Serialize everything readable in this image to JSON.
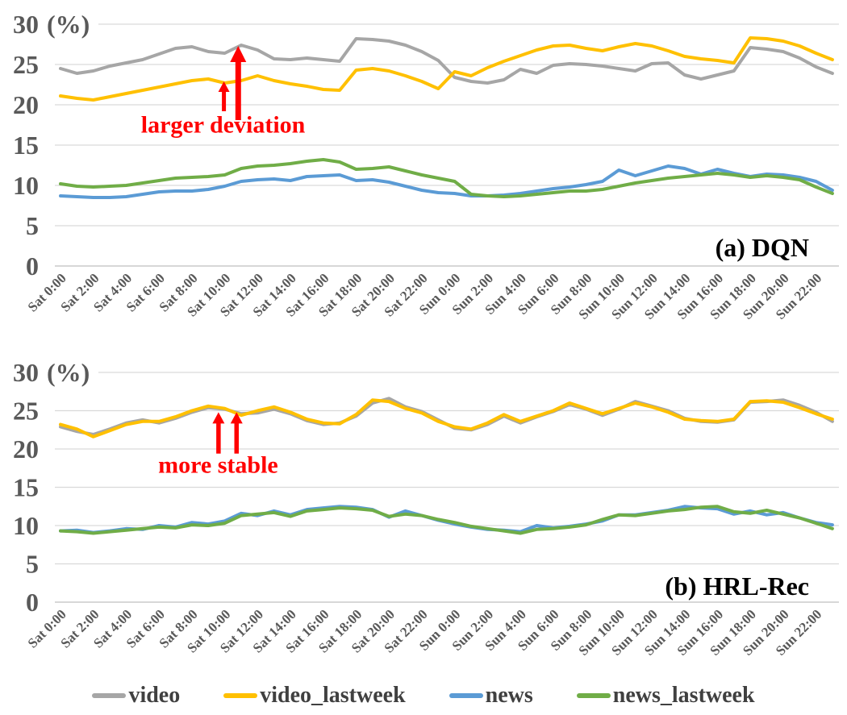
{
  "figure": {
    "unit_label": "(%)",
    "legend": {
      "items": [
        {
          "label": "video",
          "color": "#A6A6A6"
        },
        {
          "label": "video_lastweek",
          "color": "#FFC000"
        },
        {
          "label": "news",
          "color": "#5B9BD5"
        },
        {
          "label": "news_lastweek",
          "color": "#70AD47"
        }
      ]
    }
  },
  "colors": {
    "grid": "#D9D9D9",
    "axis_zero_line": "#BFBFBF",
    "tick_text": "#595959",
    "legend_text": "#404040",
    "title_text": "#000000",
    "annotation": "#FF0000"
  },
  "chart_data": [
    {
      "type": "line",
      "title": "(a) DQN",
      "ylabel": "(%)",
      "ylim": [
        0,
        30
      ],
      "yticks": [
        0,
        5,
        10,
        15,
        20,
        25,
        30
      ],
      "grid": "horizontal",
      "x_points_per_tick": 2,
      "x_tick_labels": [
        "Sat 0:00",
        "Sat 2:00",
        "Sat 4:00",
        "Sat 6:00",
        "Sat 8:00",
        "Sat 10:00",
        "Sat 12:00",
        "Sat 14:00",
        "Sat 16:00",
        "Sat 18:00",
        "Sat 20:00",
        "Sat 22:00",
        "Sun 0:00",
        "Sun 2:00",
        "Sun 4:00",
        "Sun 6:00",
        "Sun 8:00",
        "Sun 10:00",
        "Sun 12:00",
        "Sun 14:00",
        "Sun 16:00",
        "Sun 18:00",
        "Sun 20:00",
        "Sun 22:00"
      ],
      "series": [
        {
          "name": "video",
          "color": "#A6A6A6",
          "values": [
            24.5,
            23.9,
            24.2,
            24.8,
            25.2,
            25.6,
            26.3,
            27.0,
            27.2,
            26.6,
            26.4,
            27.4,
            26.8,
            25.7,
            25.6,
            25.8,
            25.6,
            25.4,
            28.2,
            28.1,
            27.9,
            27.4,
            26.6,
            25.5,
            23.4,
            22.9,
            22.7,
            23.1,
            24.4,
            23.9,
            24.9,
            25.1,
            25.0,
            24.8,
            24.5,
            24.2,
            25.1,
            25.2,
            23.7,
            23.2,
            23.7,
            24.2,
            27.1,
            26.9,
            26.6,
            25.8,
            24.7,
            23.9
          ]
        },
        {
          "name": "video_lastweek",
          "color": "#FFC000",
          "values": [
            21.1,
            20.8,
            20.6,
            21.0,
            21.4,
            21.8,
            22.2,
            22.6,
            23.0,
            23.2,
            22.7,
            23.0,
            23.6,
            23.0,
            22.6,
            22.3,
            21.9,
            21.8,
            24.3,
            24.5,
            24.2,
            23.6,
            22.9,
            22.0,
            24.1,
            23.6,
            24.6,
            25.4,
            26.1,
            26.8,
            27.3,
            27.4,
            27.0,
            26.7,
            27.2,
            27.6,
            27.3,
            26.7,
            26.0,
            25.7,
            25.5,
            25.2,
            28.3,
            28.2,
            27.9,
            27.3,
            26.4,
            25.6
          ]
        },
        {
          "name": "news",
          "color": "#5B9BD5",
          "values": [
            8.7,
            8.6,
            8.5,
            8.5,
            8.6,
            8.9,
            9.2,
            9.3,
            9.3,
            9.5,
            9.9,
            10.5,
            10.7,
            10.8,
            10.6,
            11.1,
            11.2,
            11.3,
            10.6,
            10.7,
            10.4,
            9.9,
            9.4,
            9.1,
            9.0,
            8.7,
            8.7,
            8.8,
            9.0,
            9.3,
            9.6,
            9.8,
            10.1,
            10.5,
            11.9,
            11.2,
            11.8,
            12.4,
            12.1,
            11.4,
            12.0,
            11.5,
            11.1,
            11.4,
            11.3,
            11.0,
            10.5,
            9.4
          ]
        },
        {
          "name": "news_lastweek",
          "color": "#70AD47",
          "values": [
            10.2,
            9.9,
            9.8,
            9.9,
            10.0,
            10.3,
            10.6,
            10.9,
            11.0,
            11.1,
            11.3,
            12.1,
            12.4,
            12.5,
            12.7,
            13.0,
            13.2,
            12.9,
            12.0,
            12.1,
            12.3,
            11.8,
            11.3,
            10.9,
            10.5,
            8.9,
            8.7,
            8.6,
            8.7,
            8.9,
            9.1,
            9.3,
            9.3,
            9.5,
            9.9,
            10.3,
            10.6,
            10.9,
            11.1,
            11.3,
            11.5,
            11.3,
            11.0,
            11.2,
            11.0,
            10.7,
            9.8,
            9.0
          ]
        }
      ],
      "annotation": {
        "text": "larger deviation",
        "color": "#FF0000",
        "text_center": {
          "hour": 9.9,
          "value": 17.5
        },
        "arrows": [
          {
            "hour": 9.95,
            "from_value": 19.2,
            "to_value": 22.9,
            "size": "small"
          },
          {
            "hour": 10.82,
            "from_value": 18.1,
            "to_value": 27.3,
            "size": "large"
          }
        ]
      }
    },
    {
      "type": "line",
      "title": "(b) HRL-Rec",
      "ylabel": "(%)",
      "ylim": [
        0,
        30
      ],
      "yticks": [
        0,
        5,
        10,
        15,
        20,
        25,
        30
      ],
      "grid": "horizontal",
      "x_points_per_tick": 2,
      "x_tick_labels": [
        "Sat 0:00",
        "Sat 2:00",
        "Sat 4:00",
        "Sat 6:00",
        "Sat 8:00",
        "Sat 10:00",
        "Sat 12:00",
        "Sat 14:00",
        "Sat 16:00",
        "Sat 18:00",
        "Sat 20:00",
        "Sat 22:00",
        "Sun 0:00",
        "Sun 2:00",
        "Sun 4:00",
        "Sun 6:00",
        "Sun 8:00",
        "Sun 10:00",
        "Sun 12:00",
        "Sun 14:00",
        "Sun 16:00",
        "Sun 18:00",
        "Sun 20:00",
        "Sun 22:00"
      ],
      "series": [
        {
          "name": "video",
          "color": "#A6A6A6",
          "values": [
            22.9,
            22.3,
            21.9,
            22.6,
            23.4,
            23.8,
            23.4,
            24.0,
            24.8,
            25.4,
            25.2,
            24.6,
            24.7,
            25.2,
            24.6,
            23.7,
            23.2,
            23.4,
            24.3,
            26.0,
            26.6,
            25.5,
            24.9,
            23.8,
            22.7,
            22.5,
            23.2,
            24.3,
            23.4,
            24.2,
            24.9,
            25.8,
            25.2,
            24.4,
            25.2,
            26.2,
            25.6,
            25.0,
            24.0,
            23.6,
            23.5,
            23.8,
            26.1,
            26.2,
            26.4,
            25.7,
            24.8,
            23.6
          ]
        },
        {
          "name": "video_lastweek",
          "color": "#FFC000",
          "values": [
            23.2,
            22.6,
            21.6,
            22.4,
            23.2,
            23.6,
            23.6,
            24.2,
            25.0,
            25.6,
            25.3,
            24.4,
            25.0,
            25.5,
            24.8,
            23.9,
            23.4,
            23.3,
            24.5,
            26.4,
            26.2,
            25.3,
            24.7,
            23.6,
            22.9,
            22.6,
            23.4,
            24.5,
            23.6,
            24.3,
            25.0,
            26.0,
            25.3,
            24.6,
            25.3,
            26.0,
            25.5,
            24.8,
            23.9,
            23.7,
            23.6,
            23.9,
            26.2,
            26.3,
            26.1,
            25.4,
            24.6,
            23.9
          ]
        },
        {
          "name": "news",
          "color": "#5B9BD5",
          "values": [
            9.3,
            9.4,
            9.1,
            9.3,
            9.6,
            9.5,
            10.0,
            9.8,
            10.4,
            10.2,
            10.6,
            11.6,
            11.3,
            11.9,
            11.4,
            12.1,
            12.3,
            12.5,
            12.4,
            12.1,
            11.1,
            11.9,
            11.3,
            10.7,
            10.2,
            9.8,
            9.5,
            9.4,
            9.2,
            10.0,
            9.7,
            9.9,
            10.2,
            10.6,
            11.4,
            11.4,
            11.7,
            12.0,
            12.5,
            12.3,
            12.2,
            11.5,
            11.9,
            11.4,
            11.7,
            11.0,
            10.4,
            10.1
          ]
        },
        {
          "name": "news_lastweek",
          "color": "#70AD47",
          "values": [
            9.3,
            9.2,
            9.0,
            9.2,
            9.4,
            9.6,
            9.8,
            9.7,
            10.1,
            10.0,
            10.3,
            11.3,
            11.5,
            11.7,
            11.2,
            11.9,
            12.1,
            12.3,
            12.2,
            12.0,
            11.2,
            11.5,
            11.3,
            10.8,
            10.4,
            9.9,
            9.6,
            9.3,
            9.0,
            9.5,
            9.6,
            9.8,
            10.1,
            10.8,
            11.4,
            11.3,
            11.6,
            11.9,
            12.1,
            12.4,
            12.5,
            11.8,
            11.6,
            12.0,
            11.5,
            11.0,
            10.3,
            9.6
          ]
        }
      ],
      "annotation": {
        "text": "more stable",
        "color": "#FF0000",
        "text_center": {
          "hour": 9.6,
          "value": 17.9
        },
        "arrows": [
          {
            "hour": 9.62,
            "from_value": 19.4,
            "to_value": 24.8,
            "size": "medium"
          },
          {
            "hour": 10.72,
            "from_value": 19.4,
            "to_value": 24.8,
            "size": "medium"
          }
        ]
      }
    }
  ]
}
